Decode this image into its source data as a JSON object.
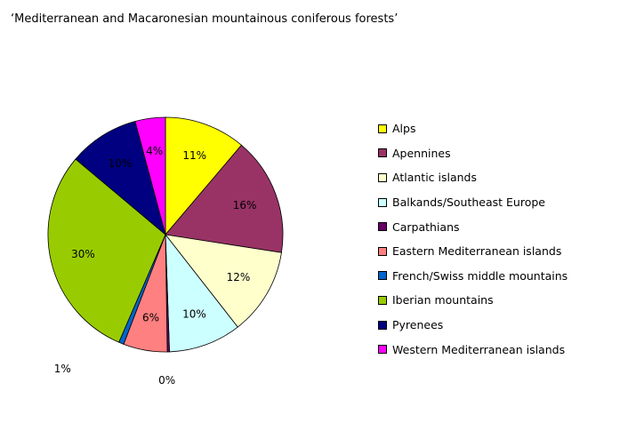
{
  "chart_data": {
    "type": "pie",
    "title": "‘Mediterranean and Macaronesian mountainous coniferous forests’",
    "categories": [
      "Alps",
      "Apennines",
      "Atlantic islands",
      "Balkands/Southeast Europe",
      "Carpathians",
      "Eastern Mediterranean islands",
      "French/Swiss middle mountains",
      "Iberian mountains",
      "Pyrenees",
      "Western Mediterranean islands"
    ],
    "values": [
      11.3,
      16.4,
      12.1,
      10.1,
      0.3,
      6.1,
      0.7,
      29.9,
      9.8,
      4.2
    ],
    "data_labels": [
      "11%",
      "16%",
      "12%",
      "10%",
      "0%",
      "6%",
      "1%",
      "30%",
      "10%",
      "4%"
    ],
    "colors": [
      "#FFFF00",
      "#993366",
      "#FFFFCC",
      "#CCFFFF",
      "#660066",
      "#FF8080",
      "#0066CC",
      "#99CC00",
      "#000080",
      "#FF00FF"
    ],
    "legend_position": "right"
  }
}
